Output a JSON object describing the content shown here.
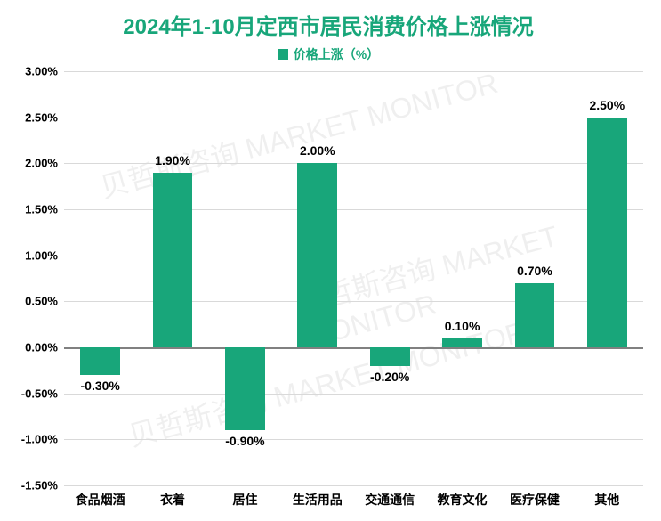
{
  "chart": {
    "type": "bar",
    "title": "2024年1-10月定西市居民消费价格上涨情况",
    "title_color": "#18a67a",
    "title_fontsize": 24,
    "legend_label": "价格上涨（%）",
    "legend_color": "#18a67a",
    "legend_fontsize": 14,
    "categories": [
      "食品烟酒",
      "衣着",
      "居住",
      "生活用品",
      "交通通信",
      "教育文化",
      "医疗保健",
      "其他"
    ],
    "values": [
      -0.3,
      1.9,
      -0.9,
      2.0,
      -0.2,
      0.1,
      0.7,
      2.5
    ],
    "value_labels": [
      "-0.30%",
      "1.90%",
      "-0.90%",
      "2.00%",
      "-0.20%",
      "0.10%",
      "0.70%",
      "2.50%"
    ],
    "bar_color": "#18a67a",
    "bar_width_ratio": 0.55,
    "value_label_fontsize": 14,
    "value_label_color": "#000000",
    "xaxis_label_fontsize": 14,
    "xaxis_label_color": "#000000",
    "yaxis_label_fontsize": 13,
    "yaxis_label_color": "#000000",
    "ylim": [
      -1.5,
      3.0
    ],
    "ytick_step": 0.5,
    "ytick_labels": [
      "-1.50%",
      "-1.00%",
      "-0.50%",
      "0.00%",
      "0.50%",
      "1.00%",
      "1.50%",
      "2.00%",
      "2.50%",
      "3.00%"
    ],
    "ytick_values": [
      -1.5,
      -1.0,
      -0.5,
      0.0,
      0.5,
      1.0,
      1.5,
      2.0,
      2.5,
      3.0
    ],
    "grid_color": "#d9d9d9",
    "zero_line_color": "#808080",
    "background_color": "#ffffff",
    "watermark_text": "贝哲斯咨询 MARKET MONITOR"
  }
}
